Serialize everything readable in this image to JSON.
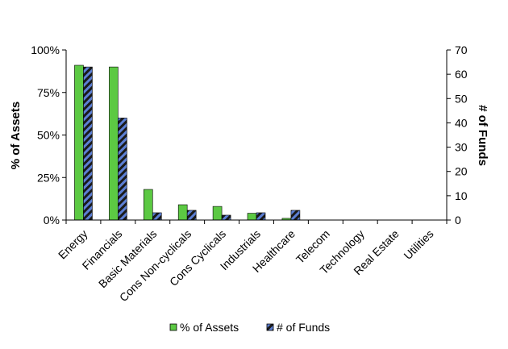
{
  "chart_data": {
    "type": "bar",
    "categories": [
      "Energy",
      "Financials",
      "Basic Materials",
      "Cons Non-cyclicals",
      "Cons Cyclicals",
      "Industrials",
      "Healthcare",
      "Telecom",
      "Technology",
      "Real Estate",
      "Utilities"
    ],
    "series": [
      {
        "name": "% of Assets",
        "axis": "left",
        "values": [
          91,
          90,
          18,
          9,
          8,
          4,
          1,
          0,
          0,
          0,
          0
        ]
      },
      {
        "name": "# of Funds",
        "axis": "right",
        "values": [
          63,
          42,
          3,
          4,
          2,
          3,
          4,
          0,
          0,
          0,
          0
        ]
      }
    ],
    "left_axis": {
      "label": "% of Assets",
      "ylim": [
        0,
        100
      ],
      "ticks": [
        0,
        25,
        50,
        75,
        100
      ],
      "tick_labels": [
        "0%",
        "25%",
        "50%",
        "75%",
        "100%"
      ]
    },
    "right_axis": {
      "label": "# of Funds",
      "ylim": [
        0,
        70
      ],
      "ticks": [
        0,
        10,
        20,
        30,
        40,
        50,
        60,
        70
      ],
      "tick_labels": [
        "0",
        "10",
        "20",
        "30",
        "40",
        "50",
        "60",
        "70"
      ]
    },
    "grid": false,
    "legend_position": "bottom",
    "colors": {
      "assets": "#5cc943",
      "funds": "#5c7fd4",
      "funds_stripe": "#1a1a1a"
    }
  }
}
